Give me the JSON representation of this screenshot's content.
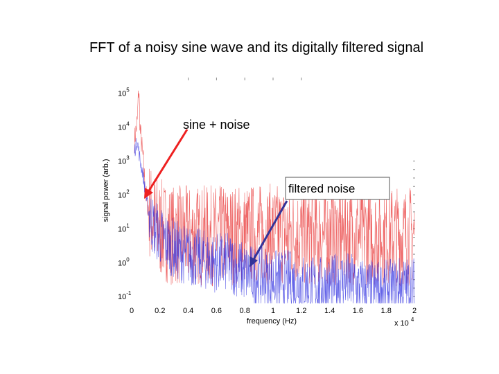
{
  "slide": {
    "title": "FFT of a noisy sine wave and its digitally filtered signal"
  },
  "chart_data": {
    "type": "line",
    "xlabel": "frequency (Hz)",
    "ylabel": "signal power (arb.)",
    "x_multiplier_label": "x 10",
    "x_multiplier_exp": "4",
    "xlim": [
      0,
      2
    ],
    "ylim_exp": [
      -1.2,
      5.3
    ],
    "y_scale": "log",
    "x_ticks": [
      "0",
      "0.2",
      "0.4",
      "0.6",
      "0.8",
      "1",
      "1.2",
      "1.4",
      "1.6",
      "1.8",
      "2"
    ],
    "y_ticks": [
      {
        "base": "10",
        "exp": "-1",
        "value": -1
      },
      {
        "base": "10",
        "exp": "0",
        "value": 0
      },
      {
        "base": "10",
        "exp": "1",
        "value": 1
      },
      {
        "base": "10",
        "exp": "2",
        "value": 2
      },
      {
        "base": "10",
        "exp": "3",
        "value": 3
      },
      {
        "base": "10",
        "exp": "4",
        "value": 4
      },
      {
        "base": "10",
        "exp": "5",
        "value": 5
      }
    ],
    "series": [
      {
        "color": "#e83030",
        "x": [
          0.02,
          0.04,
          0.05,
          0.06,
          0.08,
          0.1,
          0.12,
          0.15,
          0.2,
          0.3,
          0.4,
          0.6,
          0.8,
          1.0,
          1.2,
          1.4,
          1.6,
          1.8,
          2.0
        ],
        "logy": [
          3.6,
          4.2,
          5.2,
          3.9,
          3.1,
          2.0,
          1.6,
          1.3,
          1.0,
          0.8,
          0.8,
          0.8,
          0.85,
          0.85,
          0.8,
          0.8,
          0.85,
          0.8,
          0.8
        ]
      },
      {
        "color": "#3030e0",
        "x": [
          0.02,
          0.04,
          0.06,
          0.08,
          0.1,
          0.12,
          0.15,
          0.2,
          0.3,
          0.4,
          0.5,
          0.6,
          0.7,
          0.8,
          0.9,
          1.0,
          1.1,
          1.2,
          1.3,
          1.4,
          1.5,
          1.6,
          1.7,
          1.8,
          1.9,
          2.0
        ],
        "logy": [
          3.3,
          3.6,
          3.0,
          2.6,
          2.0,
          1.5,
          1.1,
          0.8,
          0.4,
          0.2,
          0.1,
          0.0,
          0.0,
          -0.3,
          -0.4,
          -0.5,
          -0.5,
          -0.6,
          -0.7,
          -0.7,
          -0.5,
          -0.7,
          -0.8,
          -0.8,
          -0.7,
          -0.7
        ]
      }
    ],
    "annotations": [
      {
        "text": "sine + noise"
      },
      {
        "text": "filtered noise"
      }
    ]
  }
}
